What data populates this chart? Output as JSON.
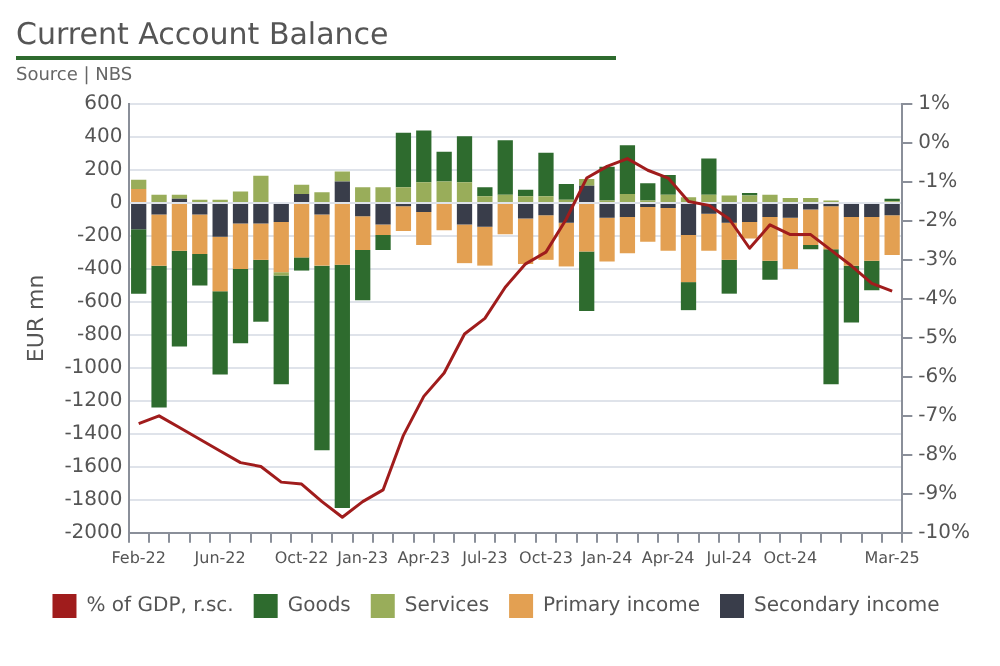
{
  "chart_data": {
    "type": "bar",
    "title": "Current Account Balance",
    "subtitle": "Source | NBS",
    "ylabel": "EUR mn",
    "stacked": true,
    "legend": "bottom",
    "grid": "y",
    "categories": [
      "Feb-22",
      null,
      null,
      null,
      "Jun-22",
      null,
      null,
      null,
      "Oct-22",
      null,
      null,
      "Jan-23",
      null,
      null,
      "Apr-23",
      null,
      null,
      "Jul-23",
      null,
      null,
      "Oct-23",
      null,
      null,
      "Jan-24",
      null,
      null,
      "Apr-24",
      null,
      null,
      "Jul-24",
      null,
      null,
      "Oct-24",
      null,
      null,
      null,
      null,
      "Mar-25"
    ],
    "ylim": [
      -2000,
      600
    ],
    "yticks": [
      -2000,
      -1800,
      -1600,
      -1400,
      -1200,
      -1000,
      -800,
      -600,
      -400,
      -200,
      0,
      200,
      400,
      600
    ],
    "y2lim": [
      -10,
      1
    ],
    "y2ticks": [
      {
        "value": -10,
        "label": "-10%"
      },
      {
        "value": -9,
        "label": "-9%"
      },
      {
        "value": -8,
        "label": "-8%"
      },
      {
        "value": -7,
        "label": "-7%"
      },
      {
        "value": -6,
        "label": "-6%"
      },
      {
        "value": -5,
        "label": "-5%"
      },
      {
        "value": -4,
        "label": "-4%"
      },
      {
        "value": -3,
        "label": "-3%"
      },
      {
        "value": -2,
        "label": "-2%"
      },
      {
        "value": -1,
        "label": "-1%"
      },
      {
        "value": 0,
        "label": "0%"
      },
      {
        "value": 1,
        "label": "1%"
      }
    ],
    "series": [
      {
        "name": "Secondary income",
        "color": "#393d4a",
        "values": [
          -160,
          -70,
          25,
          -70,
          -205,
          -125,
          -125,
          -115,
          55,
          -70,
          130,
          -80,
          -130,
          -20,
          -55,
          null,
          -130,
          -145,
          null,
          -95,
          -75,
          -120,
          105,
          -90,
          -85,
          -25,
          -30,
          -195,
          -65,
          -120,
          -115,
          -85,
          -90,
          -40,
          -20,
          -85,
          -85,
          -75
        ]
      },
      {
        "name": "Primary income",
        "color": "#e3a052",
        "values": [
          85,
          -310,
          -290,
          -240,
          -330,
          -275,
          -220,
          -305,
          -330,
          -310,
          -375,
          -205,
          -65,
          -150,
          -200,
          -165,
          -235,
          -235,
          -190,
          -275,
          -270,
          -265,
          -295,
          -265,
          -220,
          -210,
          -260,
          -285,
          -225,
          -225,
          -100,
          -265,
          -310,
          -215,
          -260,
          -295,
          -265,
          -240
        ]
      },
      {
        "name": "Services",
        "color": "#99ad5a",
        "values": [
          55,
          50,
          25,
          20,
          20,
          70,
          165,
          -20,
          55,
          65,
          60,
          95,
          95,
          95,
          125,
          130,
          125,
          40,
          50,
          40,
          40,
          20,
          40,
          15,
          55,
          15,
          50,
          35,
          50,
          45,
          45,
          50,
          30,
          30,
          15,
          0,
          0,
          10
        ]
      },
      {
        "name": "Goods",
        "color": "#2e6b2e",
        "values": [
          -390,
          -860,
          -580,
          -190,
          -505,
          -450,
          -375,
          -660,
          -80,
          -1120,
          -1475,
          -305,
          -90,
          330,
          315,
          180,
          280,
          55,
          330,
          40,
          265,
          95,
          -360,
          205,
          295,
          105,
          120,
          -170,
          220,
          -205,
          15,
          -115,
          0,
          -25,
          -820,
          -345,
          -180,
          15
        ]
      },
      {
        "name": "% of GDP, r.sc.",
        "type": "line",
        "axis": "y2",
        "color": "#a01c1c",
        "values": [
          -7.2,
          -7.0,
          -7.3,
          -7.6,
          -7.9,
          -8.2,
          -8.3,
          -8.7,
          -8.75,
          -9.2,
          -9.6,
          -9.2,
          -8.9,
          -7.5,
          -6.5,
          -5.9,
          -4.9,
          -4.5,
          -3.7,
          -3.1,
          -2.8,
          -1.95,
          -0.9,
          -0.6,
          -0.4,
          -0.7,
          -0.9,
          -1.5,
          -1.6,
          -1.95,
          -2.7,
          -2.1,
          -2.35,
          -2.35,
          -2.75,
          -3.15,
          -3.6,
          -3.8
        ]
      }
    ]
  }
}
